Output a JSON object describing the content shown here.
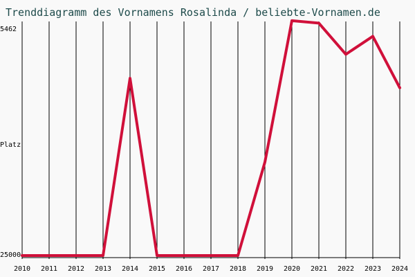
{
  "chart_data": {
    "type": "line",
    "title": "Trenddiagramm des Vornamens Rosalinda / beliebte-Vornamen.de",
    "ylabel": "Platz",
    "y_tick_labels": [
      "5462",
      "25000"
    ],
    "y_inverted": true,
    "x": [
      "2010",
      "2011",
      "2012",
      "2013",
      "2014",
      "2015",
      "2016",
      "2017",
      "2018",
      "2019",
      "2020",
      "2021",
      "2022",
      "2023",
      "2024"
    ],
    "series": [
      {
        "values": [
          25000,
          25000,
          25000,
          25000,
          10200,
          25000,
          25000,
          25000,
          25000,
          17200,
          5400,
          5600,
          8200,
          6700,
          11000
        ]
      }
    ],
    "ylim": [
      5462,
      25000
    ],
    "grid": "vertical",
    "colors": {
      "line": "#d0103a",
      "grid": "#000000",
      "title": "#1d4a4a",
      "background": "#f9f9f9"
    }
  }
}
